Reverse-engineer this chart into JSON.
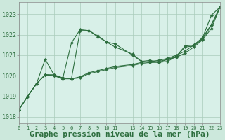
{
  "background_color": "#cce8dc",
  "plot_bg_color": "#d8f0e8",
  "grid_color": "#aaccbb",
  "line_color": "#2d6e3e",
  "xlabel": "Graphe pression niveau de la mer (hPa)",
  "xlabel_fontsize": 8,
  "ylabel_ticks": [
    1018,
    1019,
    1020,
    1021,
    1022,
    1023
  ],
  "xtick_labels": [
    "0",
    "1",
    "2",
    "3",
    "4",
    "5",
    "6",
    "7",
    "8",
    "9",
    "1011",
    "",
    "13141516171819202122",
    "",
    "23"
  ],
  "xlim": [
    0,
    23
  ],
  "ylim": [
    1017.7,
    1023.6
  ],
  "series": [
    {
      "x": [
        0,
        1,
        2,
        3,
        4,
        5,
        6,
        7,
        8,
        9,
        10,
        11,
        13,
        14,
        15,
        16,
        17,
        18,
        19,
        20,
        21,
        22,
        23
      ],
      "y": [
        1018.35,
        1019.0,
        1019.6,
        1020.8,
        1020.05,
        1019.85,
        1021.6,
        1022.25,
        1022.2,
        1021.95,
        1021.65,
        1021.55,
        1021.0,
        1020.7,
        1020.75,
        1020.65,
        1020.8,
        1020.95,
        1021.45,
        1021.5,
        1021.85,
        1022.95,
        1023.35
      ]
    },
    {
      "x": [
        0,
        1,
        2,
        3,
        4,
        5,
        6,
        7,
        8,
        9,
        10,
        11,
        13,
        14,
        15,
        16,
        17,
        18,
        19,
        20,
        21,
        22,
        23
      ],
      "y": [
        1018.35,
        1019.0,
        1019.6,
        1020.05,
        1020.05,
        1019.9,
        1019.85,
        1019.95,
        1020.15,
        1020.25,
        1020.35,
        1020.45,
        1020.55,
        1020.65,
        1020.7,
        1020.75,
        1020.85,
        1021.0,
        1021.2,
        1021.5,
        1021.85,
        1022.5,
        1023.35
      ]
    },
    {
      "x": [
        0,
        1,
        2,
        3,
        4,
        5,
        6,
        7,
        8,
        9,
        10,
        11,
        13,
        14,
        15,
        16,
        17,
        18,
        19,
        20,
        21,
        22,
        23
      ],
      "y": [
        1018.35,
        1019.0,
        1019.6,
        1020.05,
        1020.0,
        1019.9,
        1019.85,
        1019.9,
        1020.1,
        1020.2,
        1020.3,
        1020.4,
        1020.5,
        1020.6,
        1020.65,
        1020.7,
        1020.8,
        1020.9,
        1021.1,
        1021.4,
        1021.75,
        1022.3,
        1023.35
      ]
    },
    {
      "x": [
        0,
        1,
        2,
        3,
        4,
        5,
        6,
        7,
        8,
        9,
        10,
        11,
        13,
        14,
        15,
        16,
        17,
        18,
        19,
        20,
        21,
        22,
        23
      ],
      "y": [
        1018.35,
        1019.0,
        1019.6,
        1020.05,
        1020.0,
        1019.85,
        1019.85,
        1022.2,
        1022.2,
        1021.9,
        1021.65,
        1021.4,
        1021.05,
        1020.7,
        1020.65,
        1020.65,
        1020.7,
        1020.95,
        1021.4,
        1021.45,
        1021.8,
        1022.45,
        1023.35
      ]
    }
  ]
}
